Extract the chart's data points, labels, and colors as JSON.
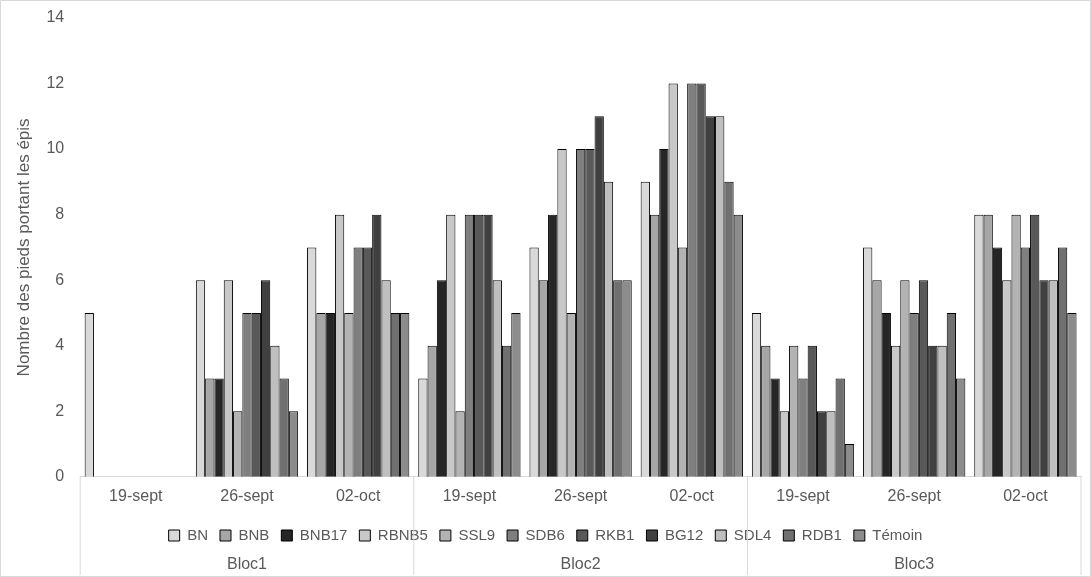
{
  "chart_data": {
    "type": "bar",
    "ylabel": "Nombre des pieds portant les épis",
    "categories": [
      "19-sept",
      "26-sept",
      "02-oct",
      "19-sept",
      "26-sept",
      "02-oct",
      "19-sept",
      "26-sept",
      "02-oct"
    ],
    "series": [
      {
        "name": "BN",
        "color": "#d9d9d9",
        "values": [
          5,
          6,
          7,
          3,
          7,
          9,
          5,
          7,
          8
        ]
      },
      {
        "name": "BNB",
        "color": "#a6a6a6",
        "values": [
          0,
          3,
          5,
          4,
          6,
          8,
          4,
          6,
          8
        ]
      },
      {
        "name": "BNB17",
        "color": "#262626",
        "values": [
          0,
          3,
          5,
          6,
          8,
          10,
          3,
          5,
          7
        ]
      },
      {
        "name": "RBNB5",
        "color": "#c8c8c8",
        "values": [
          0,
          6,
          8,
          8,
          10,
          12,
          2,
          4,
          6
        ]
      },
      {
        "name": "SSL9",
        "color": "#b3b3b3",
        "values": [
          0,
          2,
          5,
          2,
          5,
          7,
          4,
          6,
          8
        ]
      },
      {
        "name": "SDB6",
        "color": "#7f7f7f",
        "values": [
          0,
          5,
          7,
          8,
          10,
          12,
          3,
          5,
          7
        ]
      },
      {
        "name": "RKB1",
        "color": "#595959",
        "values": [
          0,
          5,
          7,
          8,
          10,
          12,
          4,
          6,
          8
        ]
      },
      {
        "name": "BG12",
        "color": "#404040",
        "values": [
          0,
          6,
          8,
          8,
          11,
          11,
          2,
          4,
          6
        ]
      },
      {
        "name": "SDL4",
        "color": "#bfbfbf",
        "values": [
          0,
          4,
          6,
          6,
          9,
          11,
          2,
          4,
          6
        ]
      },
      {
        "name": "RDB1",
        "color": "#707070",
        "values": [
          0,
          3,
          5,
          4,
          6,
          9,
          3,
          5,
          7
        ]
      },
      {
        "name": "Témoin",
        "color": "#8c8c8c",
        "values": [
          0,
          2,
          5,
          5,
          6,
          8,
          1,
          3,
          5
        ]
      }
    ],
    "annotations": [
      "Bloc1",
      "Bloc2",
      "Bloc3"
    ],
    "ylim": [
      0,
      14
    ],
    "yticks": [
      0,
      2,
      4,
      6,
      8,
      10,
      12,
      14
    ],
    "grid": false,
    "legend": "bottom"
  }
}
